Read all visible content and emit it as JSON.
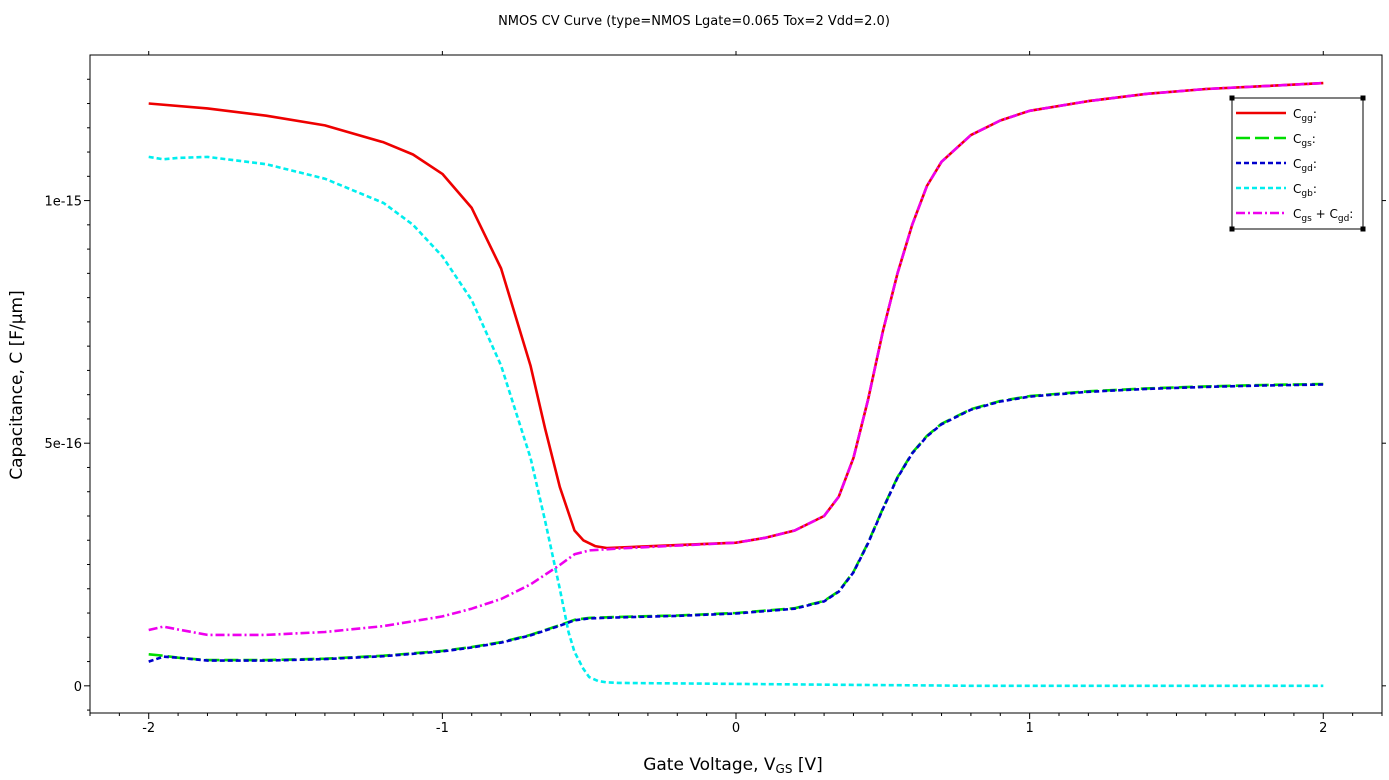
{
  "chart_data": {
    "type": "line",
    "title": "NMOS CV Curve (type=NMOS Lgate=0.065 Tox=2 Vdd=2.0)",
    "xlabel": {
      "main": "Gate Voltage, V",
      "sub": "GS",
      "unit": " [V]"
    },
    "ylabel": "Capacitance, C [F/μm]",
    "xlim": [
      -2.2,
      2.2
    ],
    "ylim": [
      -5.6e-17,
      1.3e-15
    ],
    "x_ticks": [
      -2,
      -1,
      0,
      1,
      2
    ],
    "x_tick_labels": [
      "-2",
      "-1",
      "0",
      "1",
      "2"
    ],
    "y_ticks": [
      0,
      5e-16,
      1e-15
    ],
    "y_tick_labels": [
      "0",
      "5e-16",
      "1e-15"
    ],
    "grid": false,
    "legend_position": "top-right",
    "series": [
      {
        "name": "Cgg:",
        "label_main": "C",
        "label_sub": "gg",
        "label_tail": ":",
        "color": "#ee0000",
        "dash": "",
        "x": [
          -2.0,
          -1.8,
          -1.6,
          -1.4,
          -1.2,
          -1.1,
          -1.0,
          -0.9,
          -0.8,
          -0.7,
          -0.65,
          -0.6,
          -0.55,
          -0.52,
          -0.48,
          -0.44,
          -0.4,
          -0.2,
          0.0,
          0.1,
          0.2,
          0.3,
          0.35,
          0.4,
          0.45,
          0.5,
          0.55,
          0.6,
          0.65,
          0.7,
          0.8,
          0.9,
          1.0,
          1.2,
          1.4,
          1.6,
          1.8,
          2.0
        ],
        "y": [
          1.2e-15,
          1.19e-15,
          1.175e-15,
          1.155e-15,
          1.12e-15,
          1.095e-15,
          1.055e-15,
          9.85e-16,
          8.6e-16,
          6.6e-16,
          5.3e-16,
          4.1e-16,
          3.2e-16,
          3e-16,
          2.88e-16,
          2.84e-16,
          2.85e-16,
          2.9e-16,
          2.95e-16,
          3.05e-16,
          3.2e-16,
          3.5e-16,
          3.9e-16,
          4.7e-16,
          5.9e-16,
          7.3e-16,
          8.5e-16,
          9.5e-16,
          1.03e-15,
          1.08e-15,
          1.135e-15,
          1.165e-15,
          1.185e-15,
          1.205e-15,
          1.22e-15,
          1.23e-15,
          1.236e-15,
          1.242e-15
        ]
      },
      {
        "name": "Cgs:",
        "label_main": "C",
        "label_sub": "gs",
        "label_tail": ":",
        "color": "#00dd00",
        "dash": "14,5",
        "x": [
          -2.0,
          -1.95,
          -1.9,
          -1.8,
          -1.6,
          -1.4,
          -1.2,
          -1.0,
          -0.9,
          -0.8,
          -0.7,
          -0.6,
          -0.55,
          -0.5,
          -0.4,
          -0.2,
          0.0,
          0.1,
          0.2,
          0.3,
          0.35,
          0.4,
          0.45,
          0.5,
          0.55,
          0.6,
          0.65,
          0.7,
          0.8,
          0.9,
          1.0,
          1.2,
          1.4,
          1.6,
          1.8,
          2.0
        ],
        "y": [
          6.5e-17,
          6.2e-17,
          5.8e-17,
          5.3e-17,
          5.3e-17,
          5.6e-17,
          6.2e-17,
          7.2e-17,
          8e-17,
          9e-17,
          1.05e-16,
          1.25e-16,
          1.36e-16,
          1.4e-16,
          1.42e-16,
          1.45e-16,
          1.5e-16,
          1.55e-16,
          1.6e-16,
          1.75e-16,
          1.95e-16,
          2.35e-16,
          2.95e-16,
          3.65e-16,
          4.3e-16,
          4.8e-16,
          5.15e-16,
          5.4e-16,
          5.7e-16,
          5.87e-16,
          5.97e-16,
          6.07e-16,
          6.13e-16,
          6.17e-16,
          6.2e-16,
          6.22e-16
        ]
      },
      {
        "name": "Cgd:",
        "label_main": "C",
        "label_sub": "gd",
        "label_tail": ":",
        "color": "#0000cc",
        "dash": "5,3",
        "x": [
          -2.0,
          -1.95,
          -1.9,
          -1.8,
          -1.6,
          -1.4,
          -1.2,
          -1.0,
          -0.9,
          -0.8,
          -0.7,
          -0.6,
          -0.55,
          -0.5,
          -0.4,
          -0.2,
          0.0,
          0.1,
          0.2,
          0.3,
          0.35,
          0.4,
          0.45,
          0.5,
          0.55,
          0.6,
          0.65,
          0.7,
          0.8,
          0.9,
          1.0,
          1.2,
          1.4,
          1.6,
          1.8,
          2.0
        ],
        "y": [
          5e-17,
          6e-17,
          5.8e-17,
          5.2e-17,
          5.2e-17,
          5.5e-17,
          6.1e-17,
          7.1e-17,
          7.9e-17,
          8.9e-17,
          1.04e-16,
          1.24e-16,
          1.35e-16,
          1.39e-16,
          1.41e-16,
          1.44e-16,
          1.49e-16,
          1.54e-16,
          1.59e-16,
          1.74e-16,
          1.94e-16,
          2.34e-16,
          2.94e-16,
          3.64e-16,
          4.29e-16,
          4.79e-16,
          5.14e-16,
          5.39e-16,
          5.69e-16,
          5.86e-16,
          5.96e-16,
          6.06e-16,
          6.12e-16,
          6.16e-16,
          6.19e-16,
          6.21e-16
        ]
      },
      {
        "name": "Cgb:",
        "label_main": "C",
        "label_sub": "gb",
        "label_tail": ":",
        "color": "#00eeee",
        "dash": "5,3",
        "x": [
          -2.0,
          -1.95,
          -1.9,
          -1.8,
          -1.6,
          -1.4,
          -1.2,
          -1.1,
          -1.0,
          -0.9,
          -0.8,
          -0.7,
          -0.65,
          -0.6,
          -0.57,
          -0.55,
          -0.52,
          -0.5,
          -0.47,
          -0.44,
          -0.4,
          -0.3,
          -0.2,
          0.0,
          0.2,
          0.4,
          0.6,
          0.8,
          1.0,
          1.5,
          2.0
        ],
        "y": [
          1.09e-15,
          1.085e-15,
          1.088e-15,
          1.09e-15,
          1.075e-15,
          1.045e-15,
          9.95e-16,
          9.5e-16,
          8.85e-16,
          7.95e-16,
          6.6e-16,
          4.7e-16,
          3.4e-16,
          2e-16,
          1.1e-16,
          7e-17,
          3.5e-17,
          1.8e-17,
          1e-17,
          7e-18,
          6e-18,
          5.5e-18,
          5e-18,
          4e-18,
          3e-18,
          2e-18,
          1e-18,
          0,
          0,
          0,
          0
        ]
      },
      {
        "name": "Cgs + Cgd:",
        "label_main": "C",
        "label_sub": "gs",
        "label_mid": " + C",
        "label_sub2": "gd",
        "label_tail": ":",
        "color": "#ee00ee",
        "dash": "9,3,2,3",
        "x": [
          -2.0,
          -1.95,
          -1.9,
          -1.8,
          -1.6,
          -1.4,
          -1.2,
          -1.0,
          -0.9,
          -0.8,
          -0.7,
          -0.65,
          -0.6,
          -0.55,
          -0.5,
          -0.4,
          -0.2,
          0.0,
          0.1,
          0.2,
          0.3,
          0.35,
          0.4,
          0.45,
          0.5,
          0.55,
          0.6,
          0.65,
          0.7,
          0.8,
          0.9,
          1.0,
          1.2,
          1.4,
          1.6,
          1.8,
          2.0
        ],
        "y": [
          1.15e-16,
          1.22e-16,
          1.16e-16,
          1.05e-16,
          1.05e-16,
          1.11e-16,
          1.23e-16,
          1.43e-16,
          1.59e-16,
          1.79e-16,
          2.09e-16,
          2.29e-16,
          2.49e-16,
          2.71e-16,
          2.79e-16,
          2.83e-16,
          2.89e-16,
          2.95e-16,
          3.05e-16,
          3.2e-16,
          3.5e-16,
          3.9e-16,
          4.7e-16,
          5.9e-16,
          7.3e-16,
          8.5e-16,
          9.5e-16,
          1.03e-15,
          1.08e-15,
          1.135e-15,
          1.165e-15,
          1.185e-15,
          1.205e-15,
          1.22e-15,
          1.23e-15,
          1.236e-15,
          1.242e-15
        ]
      }
    ]
  }
}
